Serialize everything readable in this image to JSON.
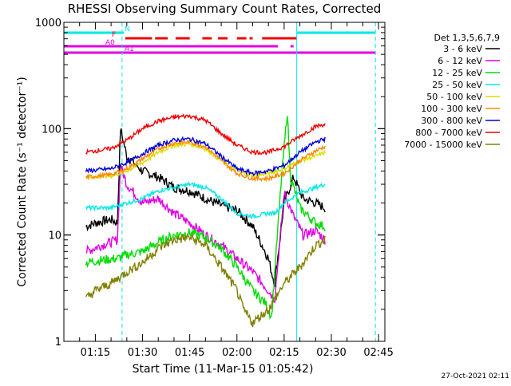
{
  "chart_data": {
    "type": "line",
    "title": "RHESSI Observing Summary Count Rates, Corrected",
    "xlabel": "Start Time (11-Mar-15 01:05:42)",
    "ylabel": "Corrected Count Rate (s⁻¹ detector⁻¹)",
    "yscale": "log",
    "ylim": [
      1,
      1000
    ],
    "xlim_minutes_after_0105": [
      0,
      102
    ],
    "y_ticks": [
      "1",
      "10",
      "100",
      "1000"
    ],
    "y_tick_values": [
      1,
      10,
      100,
      1000
    ],
    "x_ticks": [
      "01:15",
      "01:30",
      "01:45",
      "02:00",
      "02:15",
      "02:30",
      "02:45"
    ],
    "x_tick_values": [
      10,
      25,
      40,
      55,
      70,
      85,
      100
    ],
    "legend_title": "Det 1,3,5,6,7,9",
    "legend_position": "right",
    "footer_date": "27-Oct-2021 02:11",
    "series": [
      {
        "name": "3 - 6 keV",
        "color": "#000000",
        "t": [
          7,
          10,
          15,
          17,
          18,
          20,
          25,
          30,
          35,
          40,
          45,
          50,
          55,
          60,
          63,
          65,
          66,
          67,
          70,
          73,
          76,
          80,
          83
        ],
        "y": [
          12,
          13,
          14,
          13,
          100,
          55,
          40,
          35,
          28,
          26,
          22,
          19,
          17,
          12,
          8,
          6,
          4.5,
          3.5,
          20,
          35,
          22,
          20,
          18
        ]
      },
      {
        "name": "6 - 12 keV",
        "color": "#e000e0",
        "t": [
          7,
          12,
          17,
          18,
          20,
          25,
          30,
          35,
          40,
          45,
          50,
          55,
          60,
          65,
          67,
          70,
          73,
          76,
          80,
          83
        ],
        "y": [
          7,
          8,
          9,
          45,
          30,
          20,
          22,
          16,
          13,
          10,
          8,
          6,
          4.5,
          3,
          2.5,
          25,
          15,
          10,
          11,
          9
        ]
      },
      {
        "name": "12 - 25 keV",
        "color": "#00dd00",
        "t": [
          7,
          12,
          17,
          20,
          25,
          30,
          35,
          40,
          45,
          50,
          55,
          60,
          64,
          66,
          69,
          71,
          72,
          75,
          80,
          83
        ],
        "y": [
          5.5,
          5.8,
          6,
          6.5,
          7,
          8.5,
          10,
          10.5,
          9.5,
          7.5,
          5,
          3,
          2.3,
          1.7,
          30,
          145,
          35,
          18,
          13,
          12
        ]
      },
      {
        "name": "25 - 50 keV",
        "color": "#00e8e8",
        "t": [
          7,
          15,
          20,
          25,
          30,
          35,
          40,
          45,
          50,
          55,
          60,
          65,
          67,
          70,
          75,
          80,
          83
        ],
        "y": [
          18,
          18,
          20,
          22,
          26,
          28,
          30,
          28,
          22,
          16,
          15,
          16,
          16,
          20,
          25,
          28,
          30
        ]
      },
      {
        "name": "50 - 100 keV",
        "color": "#dddd00",
        "t": [
          7,
          15,
          20,
          25,
          30,
          35,
          40,
          45,
          50,
          55,
          60,
          65,
          70,
          75,
          80,
          83
        ],
        "y": [
          35,
          36,
          40,
          48,
          60,
          70,
          72,
          65,
          50,
          40,
          36,
          38,
          42,
          50,
          55,
          60
        ]
      },
      {
        "name": "100 - 300 keV",
        "color": "#ff8800",
        "t": [
          7,
          15,
          20,
          25,
          30,
          35,
          40,
          45,
          50,
          55,
          60,
          65,
          70,
          75,
          80,
          83
        ],
        "y": [
          35,
          37,
          42,
          52,
          65,
          73,
          75,
          68,
          50,
          38,
          34,
          34,
          38,
          50,
          62,
          68
        ]
      },
      {
        "name": "300 - 800 keV",
        "color": "#0000dd",
        "t": [
          7,
          15,
          20,
          25,
          30,
          35,
          40,
          45,
          50,
          55,
          60,
          65,
          70,
          75,
          80,
          83
        ],
        "y": [
          40,
          42,
          48,
          58,
          70,
          78,
          80,
          72,
          55,
          42,
          38,
          40,
          45,
          60,
          75,
          80
        ]
      },
      {
        "name": "800 - 7000 keV",
        "color": "#ee0000",
        "t": [
          7,
          15,
          20,
          25,
          30,
          35,
          40,
          45,
          50,
          55,
          60,
          65,
          70,
          75,
          80,
          83
        ],
        "y": [
          60,
          65,
          78,
          100,
          118,
          128,
          132,
          120,
          90,
          70,
          60,
          60,
          68,
          85,
          105,
          110
        ]
      },
      {
        "name": "7000 - 15000 keV",
        "color": "#808000",
        "t": [
          7,
          10,
          15,
          20,
          25,
          30,
          35,
          40,
          45,
          50,
          55,
          57,
          60,
          65,
          67,
          70,
          75,
          80,
          83
        ],
        "y": [
          2.5,
          3,
          3.5,
          4.5,
          5.5,
          7.5,
          9,
          9.5,
          8,
          5,
          3,
          2,
          1.5,
          2,
          2.5,
          3.5,
          5,
          8,
          9
        ]
      }
    ],
    "flag_bars": [
      {
        "label": "N",
        "color": "#00e8e8",
        "segments": [
          [
            0,
            19
          ],
          [
            74,
            99
          ]
        ]
      },
      {
        "label": "F",
        "color": "#ee0000",
        "segments": [
          [
            19.5,
            28
          ],
          [
            29,
            33
          ],
          [
            35.5,
            40
          ],
          [
            44,
            47
          ],
          [
            49,
            52
          ],
          [
            55,
            58
          ],
          [
            59,
            60
          ],
          [
            63,
            74
          ]
        ]
      },
      {
        "label": "A0",
        "color": "#e000e0",
        "segments": [
          [
            0,
            68
          ],
          [
            72,
            73
          ]
        ]
      },
      {
        "label": "A1",
        "color": "#e000e0",
        "segments": [
          [
            0,
            99
          ]
        ]
      }
    ],
    "vertical_lines": [
      {
        "t": 0,
        "color": "#00e8e8",
        "style": "solid"
      },
      {
        "t": 18.5,
        "color": "#00e8e8",
        "style": "dashed"
      },
      {
        "t": 74,
        "color": "#00e8e8",
        "style": "solid"
      },
      {
        "t": 99,
        "color": "#00e8e8",
        "style": "dashed"
      }
    ]
  }
}
